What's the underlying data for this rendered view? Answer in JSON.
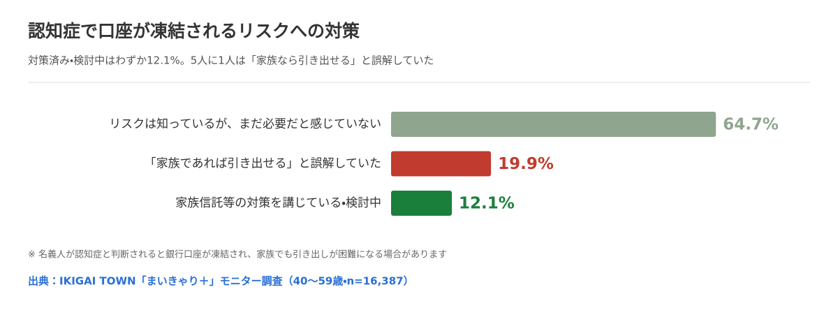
{
  "chart_data": {
    "type": "hbar",
    "title": "認知症で口座が凍結されるリスクへの対策",
    "subtitle": "対策済み・検討中はわずか12.1%。5人に1人は「家族なら引き出せる」と誤解していた",
    "categories": [
      "リスクは知っているが、まだ必要だと感じていない",
      "「家族であれば引き出せる」と誤解していた",
      "家族信託等の対策を講じている・検討中"
    ],
    "values": [
      64.7,
      19.9,
      12.1
    ],
    "value_labels": [
      "64.7%",
      "19.9%",
      "12.1%"
    ],
    "colors": [
      "#8fa58e",
      "#c13b2e",
      "#1b7f3c"
    ],
    "note": "※ 名義人が認知症と判断されると銀行口座が凍結され、家族でも引き出しが困難になる場合があります",
    "source": "出典：IKIGAI TOWN「まいきゃり＋」モニター調査（40〜59歳・n=16,387）"
  }
}
